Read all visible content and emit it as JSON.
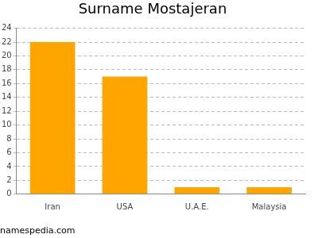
{
  "chart_data": {
    "type": "bar",
    "title": "Surname Mostajeran",
    "categories": [
      "Iran",
      "USA",
      "U.A.E.",
      "Malaysia"
    ],
    "values": [
      22,
      17,
      1,
      1
    ],
    "color": "#ffa500",
    "ylim": [
      0,
      24
    ],
    "yticks": [
      0,
      2,
      4,
      6,
      8,
      10,
      12,
      14,
      16,
      18,
      20,
      22,
      24
    ],
    "grid": true,
    "annotations": [
      "namespedia.com"
    ]
  }
}
